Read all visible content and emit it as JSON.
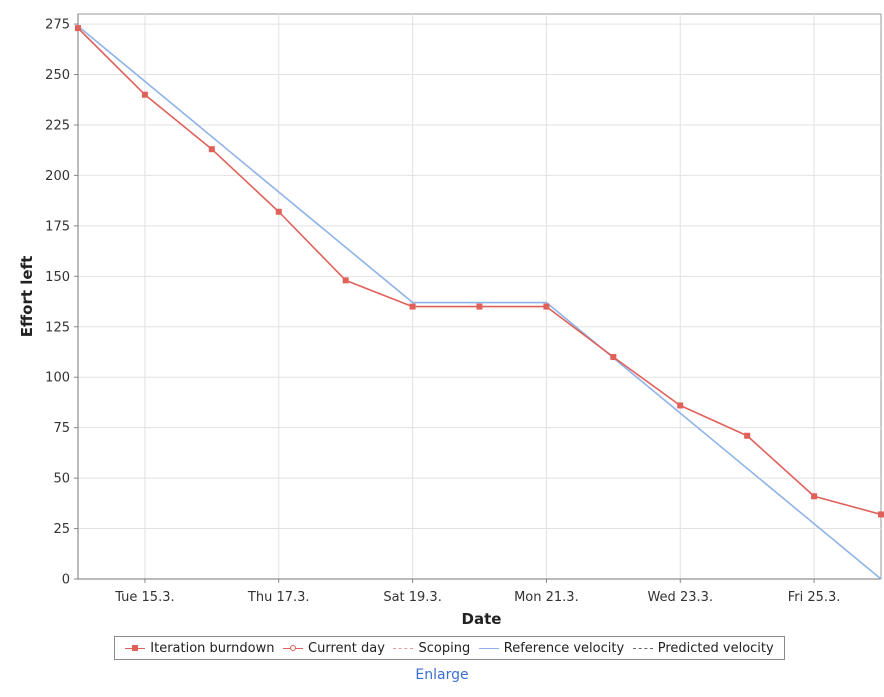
{
  "chart_data": {
    "type": "line",
    "xlabel": "Date",
    "ylabel": "Effort left",
    "ylim": [
      0,
      280
    ],
    "yticks": [
      0,
      25,
      50,
      75,
      100,
      125,
      150,
      175,
      200,
      225,
      250,
      275
    ],
    "xlim": [
      "14.3.",
      "26.3."
    ],
    "xticks": [
      {
        "x": "15.3.",
        "label": "Tue 15.3."
      },
      {
        "x": "17.3.",
        "label": "Thu 17.3."
      },
      {
        "x": "19.3.",
        "label": "Sat 19.3."
      },
      {
        "x": "21.3.",
        "label": "Mon 21.3."
      },
      {
        "x": "23.3.",
        "label": "Wed 23.3."
      },
      {
        "x": "25.3.",
        "label": "Fri 25.3."
      }
    ],
    "grid": true,
    "legend_position": "bottom",
    "series": [
      {
        "name": "Iteration burndown",
        "color": "#e0605a",
        "marker": "square",
        "points": [
          {
            "x": "14.3.",
            "y": 273
          },
          {
            "x": "15.3.",
            "y": 240
          },
          {
            "x": "16.3.",
            "y": 213
          },
          {
            "x": "17.3.",
            "y": 182
          },
          {
            "x": "18.3.",
            "y": 148
          },
          {
            "x": "19.3.",
            "y": 135
          },
          {
            "x": "20.3.",
            "y": 135
          },
          {
            "x": "21.3.",
            "y": 135
          },
          {
            "x": "22.3.",
            "y": 110
          },
          {
            "x": "23.3.",
            "y": 86
          },
          {
            "x": "24.3.",
            "y": 71
          },
          {
            "x": "25.3.",
            "y": 41
          },
          {
            "x": "26.3.",
            "y": 32
          }
        ]
      },
      {
        "name": "Reference velocity",
        "color": "#8fb3e8",
        "marker": "none",
        "points": [
          {
            "x": "14.3.",
            "y": 274
          },
          {
            "x": "19.3.",
            "y": 137
          },
          {
            "x": "21.3.",
            "y": 137
          },
          {
            "x": "26.3.",
            "y": 0
          }
        ]
      }
    ]
  },
  "legend": [
    {
      "label": "Iteration burndown",
      "style": "line-marker",
      "color": "#e0605a"
    },
    {
      "label": "Current day",
      "style": "line-open-marker",
      "color": "#e0605a"
    },
    {
      "label": "Scoping",
      "style": "dashed",
      "color": "#e0a0a0"
    },
    {
      "label": "Reference velocity",
      "style": "line",
      "color": "#8fb3e8"
    },
    {
      "label": "Predicted velocity",
      "style": "dashed",
      "color": "#666666"
    }
  ],
  "footer": {
    "enlarge_label": "Enlarge"
  }
}
